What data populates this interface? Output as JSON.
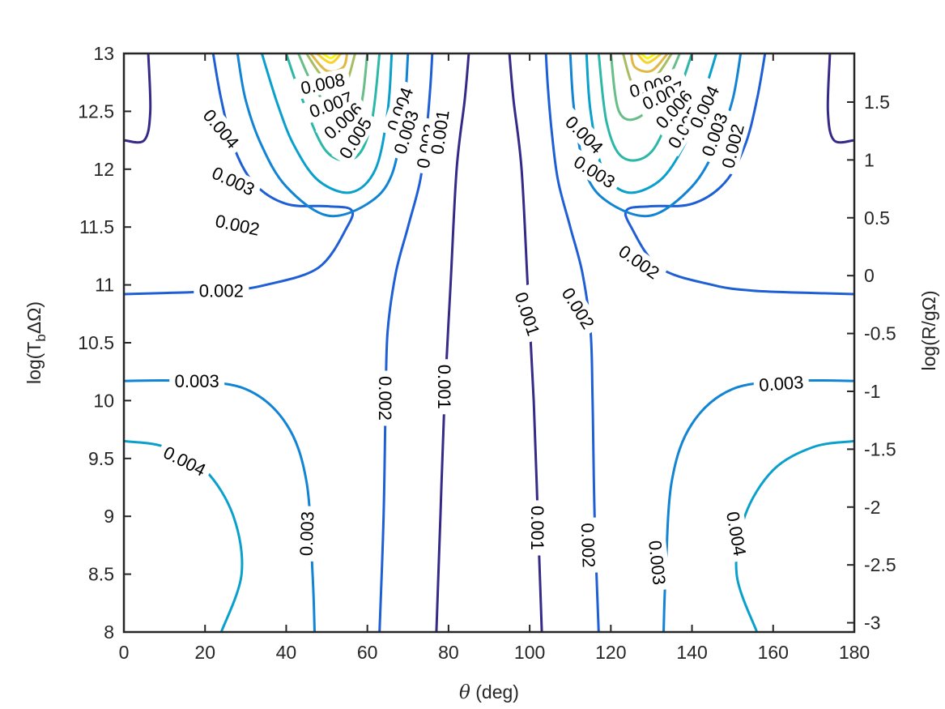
{
  "chart_data": {
    "type": "contour",
    "xlabel": "θ (deg)",
    "ylabel_left": "log(T_bΔΩ)",
    "ylabel_right": "log(R/gΩ)",
    "xlim": [
      0,
      180
    ],
    "ylim_left": [
      8,
      13
    ],
    "ylim_right": [
      -3.08,
      1.92
    ],
    "x_ticks": [
      0,
      20,
      40,
      60,
      80,
      100,
      120,
      140,
      160,
      180
    ],
    "y_left_ticks": [
      8,
      8.5,
      9,
      9.5,
      10,
      10.5,
      11,
      11.5,
      12,
      12.5,
      13
    ],
    "y_right_ticks": [
      -3,
      -2.5,
      -2,
      -1.5,
      -1,
      -0.5,
      0,
      0.5,
      1,
      1.5
    ],
    "y_right_tick_labels": [
      "-3",
      "-2.5",
      "-2",
      "-1.5",
      "-1",
      "-0.5",
      "0",
      "0.5",
      "1",
      "1.5"
    ],
    "level_colors": {
      "0.001": "#352a87",
      "0.002": "#1f5fd6",
      "0.003": "#1284d4",
      "0.004": "#0aa0cc",
      "0.005": "#2cb7a8",
      "0.006": "#68bd88",
      "0.007": "#a8bd62",
      "0.008": "#e2b844",
      "0.009": "#f8d32c",
      "0.010": "#f9fb0e"
    },
    "contours": [
      {
        "level": "0.001",
        "points": [
          [
            77,
            8
          ],
          [
            78,
            9
          ],
          [
            79,
            10
          ],
          [
            80.5,
            11
          ],
          [
            82,
            12
          ],
          [
            84,
            12.6
          ],
          [
            85,
            13
          ]
        ]
      },
      {
        "level": "0.001",
        "points": [
          [
            103,
            8
          ],
          [
            102,
            9
          ],
          [
            101,
            10
          ],
          [
            99.5,
            11
          ],
          [
            98,
            12
          ],
          [
            96,
            12.6
          ],
          [
            95,
            13
          ]
        ]
      },
      {
        "level": "0.002",
        "points": [
          [
            63,
            8
          ],
          [
            64,
            9
          ],
          [
            64.5,
            10
          ],
          [
            65,
            10.6
          ],
          [
            67,
            11.1
          ],
          [
            70,
            11.5
          ],
          [
            73,
            11.9
          ],
          [
            74.5,
            12.3
          ],
          [
            75.5,
            12.7
          ],
          [
            76,
            13
          ]
        ]
      },
      {
        "level": "0.002",
        "points": [
          [
            117,
            8
          ],
          [
            116,
            9
          ],
          [
            115.5,
            10
          ],
          [
            115,
            10.6
          ],
          [
            113,
            11.1
          ],
          [
            110,
            11.5
          ],
          [
            107,
            11.9
          ],
          [
            105.5,
            12.3
          ],
          [
            104.5,
            12.7
          ],
          [
            104,
            13
          ]
        ]
      },
      {
        "level": "0.002",
        "points": [
          [
            0,
            10.92
          ],
          [
            10,
            10.93
          ],
          [
            25,
            10.95
          ],
          [
            35,
            11.0
          ],
          [
            48,
            11.15
          ],
          [
            55,
            11.5
          ],
          [
            56,
            11.65
          ],
          [
            50,
            11.68
          ],
          [
            40,
            11.7
          ],
          [
            32,
            11.88
          ],
          [
            27,
            12.2
          ],
          [
            24,
            12.6
          ],
          [
            22,
            13
          ]
        ]
      },
      {
        "level": "0.002",
        "points": [
          [
            180,
            10.92
          ],
          [
            170,
            10.93
          ],
          [
            155,
            10.95
          ],
          [
            145,
            11.0
          ],
          [
            132,
            11.15
          ],
          [
            125,
            11.5
          ],
          [
            124,
            11.65
          ],
          [
            130,
            11.68
          ],
          [
            140,
            11.7
          ],
          [
            148,
            11.88
          ],
          [
            153,
            12.2
          ],
          [
            156,
            12.6
          ],
          [
            158,
            13
          ]
        ]
      },
      {
        "level": "0.001",
        "points": [
          [
            6,
            13
          ],
          [
            6.5,
            12.5
          ],
          [
            5,
            12.25
          ],
          [
            0,
            12.25
          ]
        ]
      },
      {
        "level": "0.001",
        "points": [
          [
            174,
            13
          ],
          [
            173.5,
            12.5
          ],
          [
            175,
            12.25
          ],
          [
            180,
            12.25
          ]
        ]
      },
      {
        "level": "0.003",
        "points": [
          [
            0,
            10.17
          ],
          [
            15,
            10.17
          ],
          [
            30,
            10.1
          ],
          [
            40,
            9.8
          ],
          [
            45,
            9.3
          ],
          [
            46.5,
            8.5
          ],
          [
            47,
            8
          ]
        ]
      },
      {
        "level": "0.003",
        "points": [
          [
            180,
            10.17
          ],
          [
            165,
            10.17
          ],
          [
            150,
            10.1
          ],
          [
            140,
            9.8
          ],
          [
            135,
            9.3
          ],
          [
            133.5,
            8.5
          ],
          [
            133,
            8
          ]
        ]
      },
      {
        "level": "0.003",
        "points": [
          [
            28,
            13
          ],
          [
            30,
            12.6
          ],
          [
            34,
            12.2
          ],
          [
            40,
            11.85
          ],
          [
            50,
            11.6
          ],
          [
            60,
            11.7
          ],
          [
            66,
            11.95
          ],
          [
            69,
            12.5
          ],
          [
            70,
            13
          ]
        ]
      },
      {
        "level": "0.003",
        "points": [
          [
            152,
            13
          ],
          [
            150,
            12.6
          ],
          [
            146,
            12.2
          ],
          [
            140,
            11.85
          ],
          [
            130,
            11.6
          ],
          [
            120,
            11.7
          ],
          [
            114,
            11.95
          ],
          [
            111,
            12.5
          ],
          [
            110,
            13
          ]
        ]
      },
      {
        "level": "0.004",
        "points": [
          [
            0,
            9.65
          ],
          [
            10,
            9.6
          ],
          [
            20,
            9.4
          ],
          [
            27,
            9.0
          ],
          [
            29,
            8.5
          ],
          [
            24,
            8
          ]
        ]
      },
      {
        "level": "0.004",
        "points": [
          [
            180,
            9.65
          ],
          [
            170,
            9.6
          ],
          [
            160,
            9.4
          ],
          [
            153,
            9.0
          ],
          [
            151,
            8.5
          ],
          [
            156,
            8
          ]
        ]
      },
      {
        "level": "0.004",
        "points": [
          [
            34,
            13
          ],
          [
            38,
            12.55
          ],
          [
            42,
            12.2
          ],
          [
            48,
            11.9
          ],
          [
            56,
            11.8
          ],
          [
            62,
            12.0
          ],
          [
            65,
            12.5
          ],
          [
            66,
            13
          ]
        ]
      },
      {
        "level": "0.004",
        "points": [
          [
            146,
            13
          ],
          [
            142,
            12.55
          ],
          [
            138,
            12.2
          ],
          [
            132,
            11.9
          ],
          [
            124,
            11.8
          ],
          [
            118,
            12.0
          ],
          [
            115,
            12.5
          ],
          [
            114,
            13
          ]
        ]
      },
      {
        "level": "0.005",
        "points": [
          [
            40,
            13
          ],
          [
            44,
            12.6
          ],
          [
            50,
            12.15
          ],
          [
            57,
            12.1
          ],
          [
            61,
            12.4
          ],
          [
            63,
            13
          ]
        ]
      },
      {
        "level": "0.005",
        "points": [
          [
            140,
            13
          ],
          [
            136,
            12.6
          ],
          [
            130,
            12.15
          ],
          [
            123,
            12.1
          ],
          [
            119,
            12.4
          ],
          [
            117,
            13
          ]
        ]
      },
      {
        "level": "0.006",
        "points": [
          [
            43,
            13
          ],
          [
            47,
            12.7
          ],
          [
            53,
            12.45
          ],
          [
            58,
            12.5
          ],
          [
            60,
            13
          ]
        ]
      },
      {
        "level": "0.006",
        "points": [
          [
            137,
            13
          ],
          [
            133,
            12.7
          ],
          [
            127,
            12.45
          ],
          [
            122,
            12.5
          ],
          [
            120,
            13
          ]
        ]
      },
      {
        "level": "0.007",
        "points": [
          [
            45,
            13
          ],
          [
            49,
            12.8
          ],
          [
            54,
            12.7
          ],
          [
            57,
            13
          ]
        ]
      },
      {
        "level": "0.007",
        "points": [
          [
            135,
            13
          ],
          [
            131,
            12.8
          ],
          [
            126,
            12.7
          ],
          [
            123,
            13
          ]
        ]
      },
      {
        "level": "0.008",
        "points": [
          [
            46,
            13
          ],
          [
            50,
            12.85
          ],
          [
            54,
            12.88
          ],
          [
            55,
            13
          ]
        ]
      },
      {
        "level": "0.008",
        "points": [
          [
            134,
            13
          ],
          [
            130,
            12.85
          ],
          [
            126,
            12.88
          ],
          [
            125,
            13
          ]
        ]
      },
      {
        "level": "0.009",
        "points": [
          [
            47.5,
            13
          ],
          [
            51,
            12.92
          ],
          [
            53.5,
            13
          ]
        ]
      },
      {
        "level": "0.009",
        "points": [
          [
            132.5,
            13
          ],
          [
            129,
            12.92
          ],
          [
            126.5,
            13
          ]
        ]
      },
      {
        "level": "0.010",
        "points": [
          [
            49,
            13
          ],
          [
            51,
            12.96
          ],
          [
            52.5,
            13
          ]
        ]
      },
      {
        "level": "0.010",
        "points": [
          [
            131,
            13
          ],
          [
            129,
            12.96
          ],
          [
            127.5,
            13
          ]
        ]
      }
    ],
    "labels": [
      {
        "text": "0.002",
        "x": 24,
        "y": 10.95,
        "angle": 0
      },
      {
        "text": "0.003",
        "x": 18,
        "y": 10.17,
        "angle": 0
      },
      {
        "text": "0.004",
        "x": 15,
        "y": 9.48,
        "angle": 27
      },
      {
        "text": "0.003",
        "x": 45,
        "y": 8.85,
        "angle": -88
      },
      {
        "text": "0.002",
        "x": 64.5,
        "y": 10.02,
        "angle": 90
      },
      {
        "text": "0.001",
        "x": 79,
        "y": 10.12,
        "angle": 90
      },
      {
        "text": "0.001",
        "x": 99.5,
        "y": 10.75,
        "angle": 72
      },
      {
        "text": "0.002",
        "x": 112,
        "y": 10.8,
        "angle": 58
      },
      {
        "text": "0.002",
        "x": 127,
        "y": 11.2,
        "angle": 35
      },
      {
        "text": "0.003",
        "x": 162,
        "y": 10.15,
        "angle": -4
      },
      {
        "text": "0.004",
        "x": 151,
        "y": 8.85,
        "angle": 80
      },
      {
        "text": "0.003",
        "x": 131.5,
        "y": 8.6,
        "angle": 84
      },
      {
        "text": "0.002",
        "x": 114.5,
        "y": 8.75,
        "angle": 88
      },
      {
        "text": "0.001",
        "x": 102,
        "y": 8.9,
        "angle": 90
      },
      {
        "text": "0.002",
        "x": 28,
        "y": 11.52,
        "angle": 12
      },
      {
        "text": "0.003",
        "x": 27,
        "y": 11.9,
        "angle": 25
      },
      {
        "text": "0.004",
        "x": 24,
        "y": 12.35,
        "angle": 50
      },
      {
        "text": "0.008",
        "x": 49,
        "y": 12.74,
        "angle": -12
      },
      {
        "text": "0.007",
        "x": 51,
        "y": 12.56,
        "angle": -20
      },
      {
        "text": "0.006",
        "x": 54,
        "y": 12.42,
        "angle": -42
      },
      {
        "text": "0.005",
        "x": 57,
        "y": 12.27,
        "angle": -58
      },
      {
        "text": "0.004",
        "x": 68,
        "y": 12.52,
        "angle": -70
      },
      {
        "text": "0.003",
        "x": 69.5,
        "y": 12.32,
        "angle": -72
      },
      {
        "text": "0.002",
        "x": 74.5,
        "y": 12.2,
        "angle": -80
      },
      {
        "text": "0.001",
        "x": 77.8,
        "y": 12.32,
        "angle": -82
      },
      {
        "text": "0.004",
        "x": 113.5,
        "y": 12.3,
        "angle": 45
      },
      {
        "text": "0.003",
        "x": 116,
        "y": 11.98,
        "angle": 32
      },
      {
        "text": "0.008",
        "x": 130,
        "y": 12.72,
        "angle": -15
      },
      {
        "text": "0.007",
        "x": 133,
        "y": 12.64,
        "angle": -25
      },
      {
        "text": "0.006",
        "x": 135.5,
        "y": 12.52,
        "angle": -48
      },
      {
        "text": "0.005",
        "x": 138,
        "y": 12.36,
        "angle": -58
      },
      {
        "text": "0.004",
        "x": 143,
        "y": 12.54,
        "angle": -64
      },
      {
        "text": "0.003",
        "x": 145.5,
        "y": 12.3,
        "angle": -70
      },
      {
        "text": "0.002",
        "x": 150,
        "y": 12.2,
        "angle": -76
      }
    ]
  }
}
